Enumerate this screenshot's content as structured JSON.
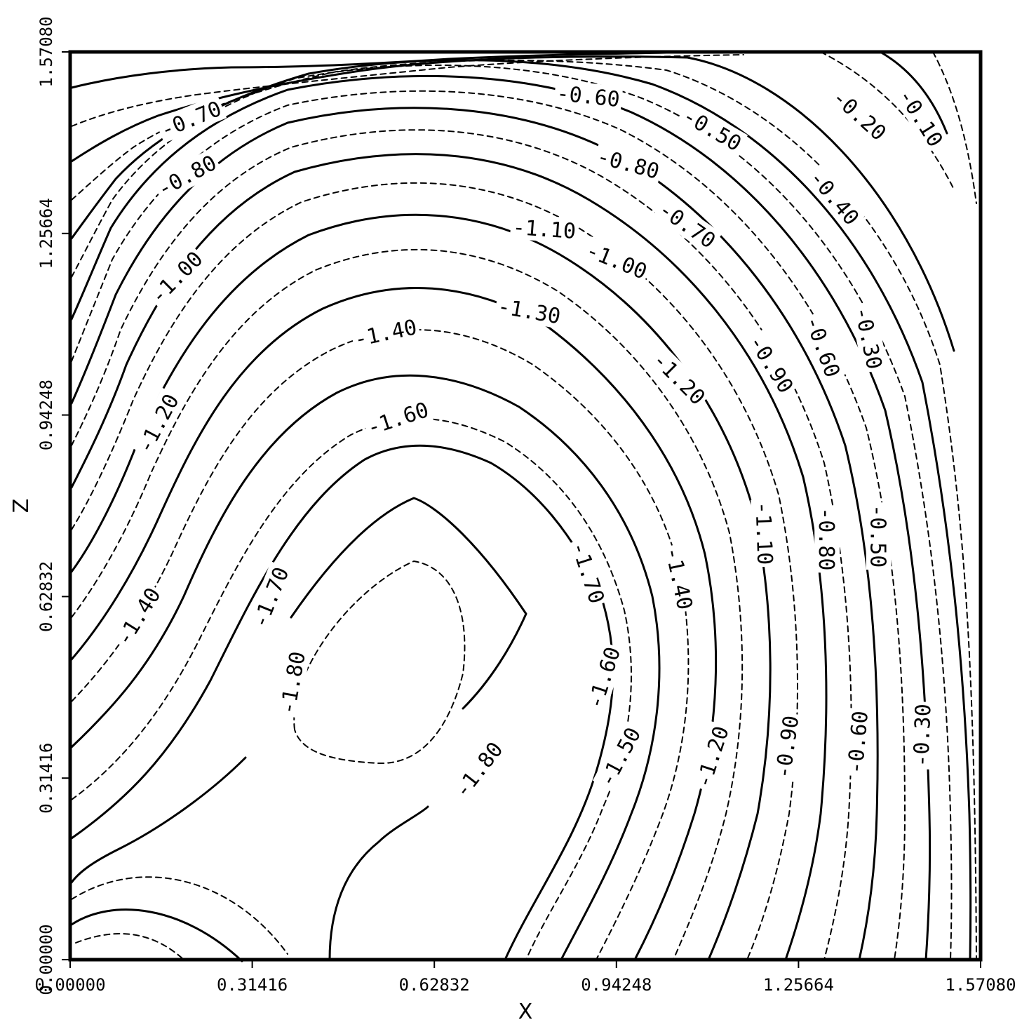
{
  "chart_data": {
    "type": "contour",
    "title": "",
    "xlabel": "X",
    "ylabel": "Z",
    "xlim": [
      0.0,
      1.5708
    ],
    "ylim": [
      0.0,
      1.5708
    ],
    "x_ticks": [
      "0.00000",
      "0.31416",
      "0.62832",
      "0.94248",
      "1.25664",
      "1.57080"
    ],
    "y_ticks": [
      "0.00000",
      "0.31416",
      "0.62832",
      "0.94248",
      "1.25664",
      "1.57080"
    ],
    "grid": false,
    "legend": "none",
    "line_styles": {
      "solid": "levels ending in .x0",
      "dashed": "intermediate levels (.x5)"
    },
    "contour_labels": [
      {
        "text": "-0.60",
        "x": 0.894,
        "z": 1.495,
        "angle": 6
      },
      {
        "text": "-0.50",
        "x": 1.108,
        "z": 1.437,
        "angle": 30
      },
      {
        "text": "-0.20",
        "x": 1.362,
        "z": 1.462,
        "angle": 42
      },
      {
        "text": "-0.10",
        "x": 1.468,
        "z": 1.457,
        "angle": 58
      },
      {
        "text": "-0.70",
        "x": 0.208,
        "z": 1.455,
        "angle": -22
      },
      {
        "text": "-0.80",
        "x": 0.201,
        "z": 1.357,
        "angle": -28
      },
      {
        "text": "-0.80",
        "x": 0.963,
        "z": 1.378,
        "angle": 15
      },
      {
        "text": "-0.40",
        "x": 1.319,
        "z": 1.319,
        "angle": 50
      },
      {
        "text": "-0.70",
        "x": 1.065,
        "z": 1.272,
        "angle": 35
      },
      {
        "text": "-1.10",
        "x": 0.818,
        "z": 1.265,
        "angle": 4
      },
      {
        "text": "-1.00",
        "x": 0.943,
        "z": 1.21,
        "angle": 22
      },
      {
        "text": "-1.00",
        "x": 0.183,
        "z": 1.181,
        "angle": -45
      },
      {
        "text": "-1.30",
        "x": 0.792,
        "z": 1.123,
        "angle": 10
      },
      {
        "text": "-1.40",
        "x": 0.544,
        "z": 1.085,
        "angle": -12
      },
      {
        "text": "-0.30",
        "x": 1.378,
        "z": 1.076,
        "angle": 78
      },
      {
        "text": "-0.60",
        "x": 1.299,
        "z": 1.061,
        "angle": 70
      },
      {
        "text": "-0.90",
        "x": 1.21,
        "z": 1.031,
        "angle": 58
      },
      {
        "text": "-1.20",
        "x": 1.051,
        "z": 1.006,
        "angle": 45
      },
      {
        "text": "-1.60",
        "x": 0.565,
        "z": 0.937,
        "angle": -18
      },
      {
        "text": "-1.20",
        "x": 0.151,
        "z": 0.928,
        "angle": -62
      },
      {
        "text": "-1.10",
        "x": 1.198,
        "z": 0.738,
        "angle": 88
      },
      {
        "text": "-0.80",
        "x": 1.306,
        "z": 0.728,
        "angle": 90
      },
      {
        "text": "-0.50",
        "x": 1.395,
        "z": 0.733,
        "angle": 90
      },
      {
        "text": "-1.70",
        "x": 0.894,
        "z": 0.67,
        "angle": 72
      },
      {
        "text": "-1.40",
        "x": 1.051,
        "z": 0.66,
        "angle": 78
      },
      {
        "text": "-1.70",
        "x": 0.345,
        "z": 0.627,
        "angle": -68
      },
      {
        "text": "-1.40",
        "x": 0.117,
        "z": 0.594,
        "angle": -58
      },
      {
        "text": "-1.60",
        "x": 0.92,
        "z": 0.488,
        "angle": -72
      },
      {
        "text": "-1.80",
        "x": 0.383,
        "z": 0.479,
        "angle": -80
      },
      {
        "text": "-1.50",
        "x": 0.948,
        "z": 0.351,
        "angle": -62
      },
      {
        "text": "-1.20",
        "x": 1.107,
        "z": 0.351,
        "angle": -72
      },
      {
        "text": "-0.90",
        "x": 1.236,
        "z": 0.368,
        "angle": -82
      },
      {
        "text": "-0.60",
        "x": 1.358,
        "z": 0.376,
        "angle": -85
      },
      {
        "text": "-0.30",
        "x": 1.469,
        "z": 0.388,
        "angle": -88
      },
      {
        "text": "-1.80",
        "x": 0.704,
        "z": 0.329,
        "angle": -52
      }
    ]
  }
}
